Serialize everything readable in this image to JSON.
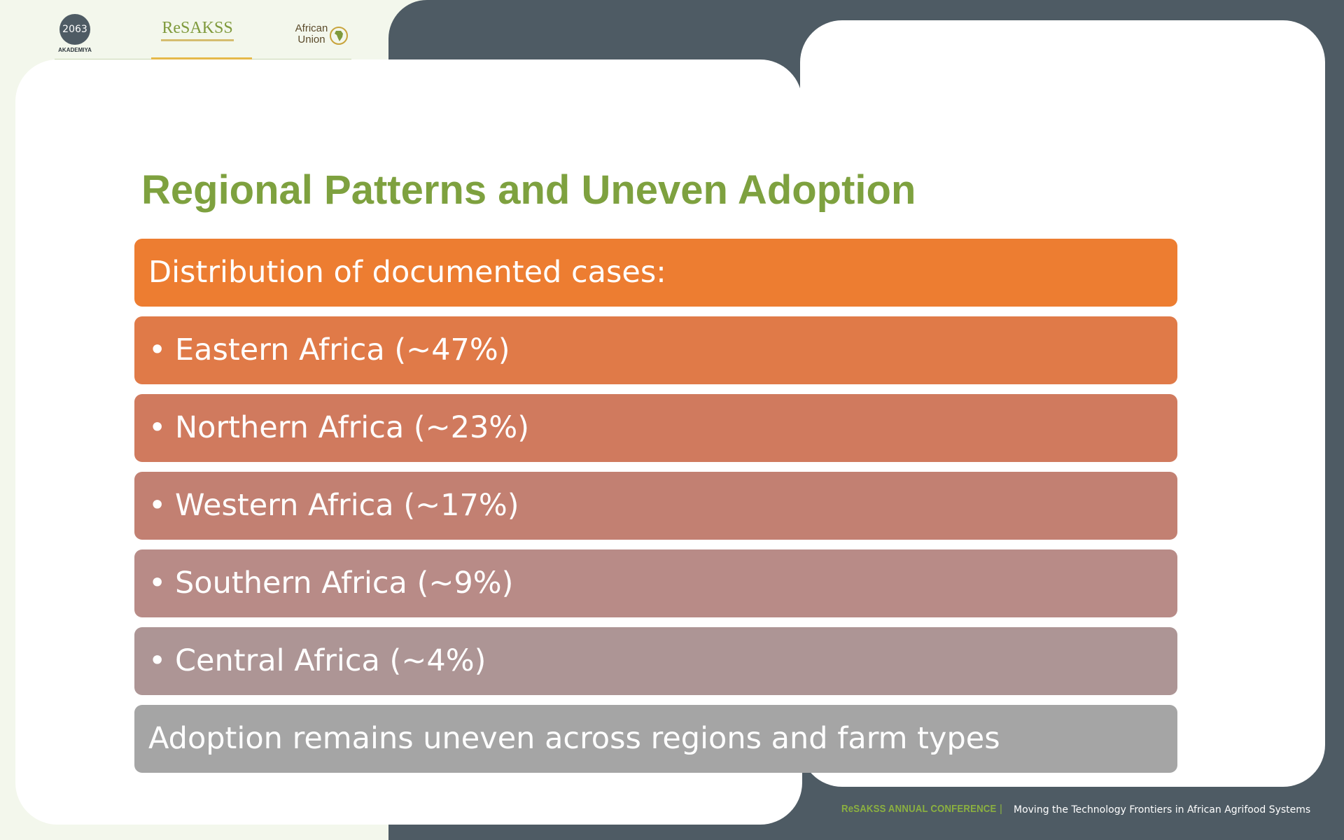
{
  "logos": {
    "akademiya_mark": "2063",
    "akademiya_label": "AKADEMIYA",
    "resakss": "ReSAKSS",
    "african_union": "African Union"
  },
  "slide": {
    "title": "Regional Patterns and Uneven Adoption",
    "bars": [
      {
        "text": "Distribution of documented cases:",
        "bullet": false,
        "color": "#ed7d31"
      },
      {
        "text": "Eastern Africa (~47%)",
        "bullet": true,
        "color": "#e07a48"
      },
      {
        "text": "Northern Africa (~23%)",
        "bullet": true,
        "color": "#d07a5e"
      },
      {
        "text": "Western Africa (~17%)",
        "bullet": true,
        "color": "#c28072"
      },
      {
        "text": "Southern Africa (~9%)",
        "bullet": true,
        "color": "#b88b87"
      },
      {
        "text": "Central Africa (~4%)",
        "bullet": true,
        "color": "#ad9595"
      },
      {
        "text": "Adoption remains uneven across regions and farm types",
        "bullet": false,
        "color": "#a5a5a5"
      }
    ]
  },
  "footer": {
    "brand": "ReSAKSS ANNUAL CONFERENCE",
    "separator": "|",
    "tagline": "Moving the Technology Frontiers in African Agrifood Systems"
  },
  "colors": {
    "title_green": "#7ea13f",
    "dark_panel": "#4e5b64",
    "page_bg": "#f3f7ec"
  }
}
